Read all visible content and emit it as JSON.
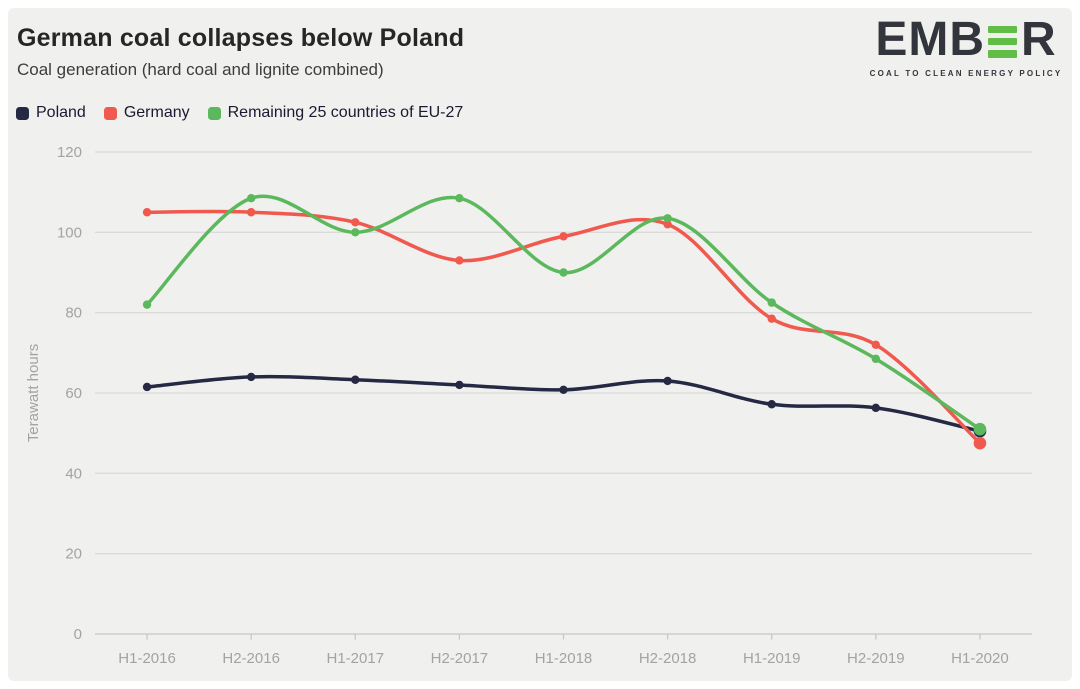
{
  "logo": {
    "text_left": "EMB",
    "text_right": "R",
    "tagline": "COAL TO CLEAN ENERGY POLICY",
    "bar_color": "#62bd47",
    "text_color": "#32363c"
  },
  "colors": {
    "page_background": "#ffffff",
    "card_background": "#f0f0ee",
    "gridline": "#dbdbd9",
    "axis_line": "#c7c7c5",
    "tick_mark": "#c7c7c5",
    "tick_label": "#a3a3a1",
    "axis_title": "#a3a3a1",
    "title": "#262626",
    "subtitle": "#3d3d3d",
    "legend_text": "#1a1a30"
  },
  "chart_data": {
    "type": "line",
    "title": "German coal collapses below Poland",
    "subtitle": "Coal generation (hard coal and lignite combined)",
    "xlabel": "",
    "ylabel": "Terawatt hours",
    "ylim": [
      0,
      120
    ],
    "yticks": [
      0,
      20,
      40,
      60,
      80,
      100,
      120
    ],
    "grid": true,
    "smooth": true,
    "legend_position": "top-left",
    "categories": [
      "H1-2016",
      "H2-2016",
      "H1-2017",
      "H2-2017",
      "H1-2018",
      "H2-2018",
      "H1-2019",
      "H2-2019",
      "H1-2020"
    ],
    "series": [
      {
        "name": "Poland",
        "color": "#252944",
        "values": [
          61.5,
          64,
          63.3,
          62,
          60.8,
          63,
          57.2,
          56.3,
          50.5
        ]
      },
      {
        "name": "Germany",
        "color": "#f0594e",
        "values": [
          105,
          105,
          102.5,
          93,
          99,
          102,
          78.5,
          72,
          47.5
        ]
      },
      {
        "name": "Remaining 25 countries of EU-27",
        "color": "#5cb85c",
        "values": [
          82,
          108.5,
          100,
          108.5,
          90,
          103.5,
          82.5,
          68.5,
          51
        ]
      }
    ]
  }
}
